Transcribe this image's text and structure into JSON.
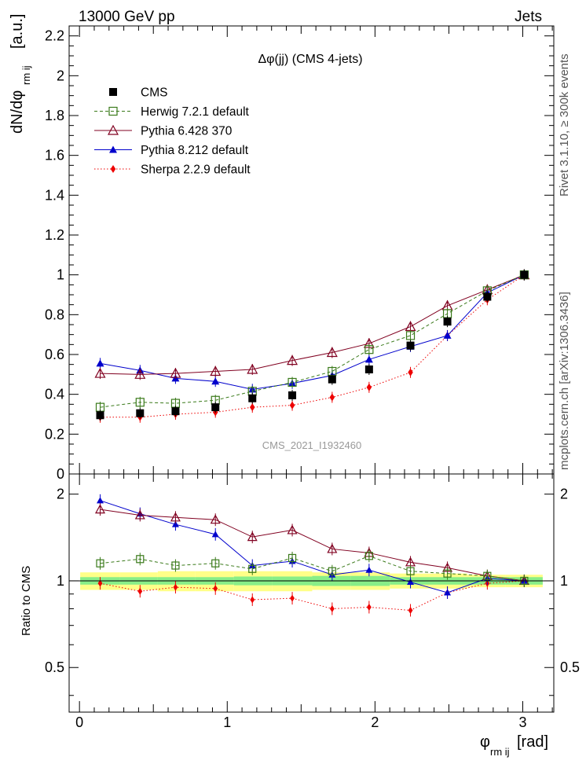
{
  "header": {
    "left": "13000 GeV pp",
    "right": "Jets"
  },
  "side_labels": {
    "rivet": "Rivet 3.1.10, ≥ 300k events",
    "mcplots": "mcplots.cern.ch [arXiv:1306.3436]"
  },
  "chart_data": {
    "type": "line",
    "title": "Δφ(jj) (CMS 4-jets)",
    "watermark": "CMS_2021_I1932460",
    "xlabel": "φ",
    "xlabel_sub": "rm ij",
    "xlabel_unit": "[rad]",
    "ylabel": "dN/dφ",
    "ylabel_sub": "rm ij",
    "ylabel_unit": "[a.u.]",
    "ratio_ylabel": "Ratio to CMS",
    "xlim": [
      -0.07,
      3.21
    ],
    "ylim": [
      0,
      2.25
    ],
    "ratio_ylim": [
      0.35,
      2.35
    ],
    "x_ticks": [
      "0",
      "1",
      "2",
      "3"
    ],
    "y_ticks": [
      "0",
      "0.2",
      "0.4",
      "0.6",
      "0.8",
      "1",
      "1.2",
      "1.4",
      "1.6",
      "1.8",
      "2",
      "2.2"
    ],
    "ratio_ticks": [
      "0.5",
      "1",
      "2"
    ],
    "x": [
      0.14,
      0.41,
      0.65,
      0.92,
      1.17,
      1.44,
      1.71,
      1.96,
      2.24,
      2.49,
      2.76,
      3.01
    ],
    "band_inner": [
      0.03,
      0.03,
      0.03,
      0.03,
      0.035,
      0.035,
      0.04,
      0.04,
      0.03,
      0.03,
      0.03,
      0.03
    ],
    "band_outer": [
      0.07,
      0.07,
      0.08,
      0.08,
      0.08,
      0.08,
      0.07,
      0.07,
      0.06,
      0.06,
      0.05,
      0.05
    ],
    "series": [
      {
        "name": "CMS",
        "color": "#000000",
        "marker": "square",
        "line": "none",
        "values": [
          0.295,
          0.305,
          0.315,
          0.335,
          0.38,
          0.395,
          0.475,
          0.525,
          0.645,
          0.765,
          0.89,
          1.0
        ],
        "ratio": [
          1,
          1,
          1,
          1,
          1,
          1,
          1,
          1,
          1,
          1,
          1,
          1
        ]
      },
      {
        "name": "Herwig 7.2.1 default",
        "color": "#3a7a1a",
        "marker": "open-square",
        "line": "dashed",
        "values": [
          0.335,
          0.36,
          0.355,
          0.37,
          0.415,
          0.46,
          0.515,
          0.625,
          0.695,
          0.805,
          0.92,
          1.0
        ],
        "ratio": [
          1.15,
          1.19,
          1.13,
          1.15,
          1.1,
          1.2,
          1.08,
          1.22,
          1.08,
          1.06,
          1.04,
          1.0
        ]
      },
      {
        "name": "Pythia 6.428 370",
        "color": "#800020",
        "marker": "open-triangle",
        "line": "solid",
        "values": [
          0.505,
          0.5,
          0.505,
          0.515,
          0.525,
          0.57,
          0.61,
          0.655,
          0.74,
          0.845,
          0.925,
          1.0
        ],
        "ratio": [
          1.77,
          1.69,
          1.66,
          1.63,
          1.42,
          1.5,
          1.29,
          1.25,
          1.16,
          1.11,
          1.04,
          1.0
        ]
      },
      {
        "name": "Pythia 8.212 default",
        "color": "#0000cc",
        "marker": "filled-triangle",
        "line": "solid",
        "values": [
          0.555,
          0.52,
          0.48,
          0.465,
          0.425,
          0.455,
          0.495,
          0.575,
          0.64,
          0.695,
          0.91,
          1.0
        ],
        "ratio": [
          1.9,
          1.71,
          1.57,
          1.45,
          1.13,
          1.17,
          1.05,
          1.09,
          0.99,
          0.91,
          1.02,
          1.0
        ]
      },
      {
        "name": "Sherpa 2.2.9 default",
        "color": "#ee0000",
        "marker": "diamond",
        "line": "dotted",
        "values": [
          0.285,
          0.285,
          0.3,
          0.31,
          0.335,
          0.345,
          0.385,
          0.435,
          0.51,
          0.695,
          0.875,
          1.0
        ],
        "ratio": [
          0.98,
          0.92,
          0.95,
          0.94,
          0.86,
          0.87,
          0.8,
          0.81,
          0.79,
          0.91,
          0.98,
          1.0
        ]
      }
    ]
  }
}
